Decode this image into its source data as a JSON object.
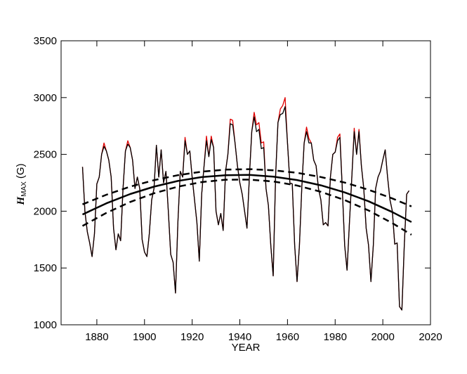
{
  "chart_data": {
    "type": "line",
    "x_label": "YEAR",
    "y_label": {
      "symbol": "H",
      "subscript": "MAX",
      "unit": "(G)"
    },
    "xlim": [
      1865,
      2020
    ],
    "ylim": [
      1000,
      3500
    ],
    "xticks": [
      1880,
      1900,
      1920,
      1940,
      1960,
      1980,
      2000,
      2020
    ],
    "yticks": [
      1000,
      1500,
      2000,
      2500,
      3000,
      3500
    ],
    "x": [
      1874,
      1875,
      1876,
      1877,
      1878,
      1879,
      1880,
      1881,
      1882,
      1883,
      1884,
      1885,
      1886,
      1887,
      1888,
      1889,
      1890,
      1891,
      1892,
      1893,
      1894,
      1895,
      1896,
      1897,
      1898,
      1899,
      1900,
      1901,
      1902,
      1903,
      1904,
      1905,
      1906,
      1907,
      1908,
      1909,
      1910,
      1911,
      1912,
      1913,
      1914,
      1915,
      1916,
      1917,
      1918,
      1919,
      1920,
      1921,
      1922,
      1923,
      1924,
      1925,
      1926,
      1927,
      1928,
      1929,
      1930,
      1931,
      1932,
      1933,
      1934,
      1935,
      1936,
      1937,
      1938,
      1939,
      1940,
      1941,
      1942,
      1943,
      1944,
      1945,
      1946,
      1947,
      1948,
      1949,
      1950,
      1951,
      1952,
      1953,
      1954,
      1955,
      1956,
      1957,
      1958,
      1959,
      1960,
      1961,
      1962,
      1963,
      1964,
      1965,
      1966,
      1967,
      1968,
      1969,
      1970,
      1971,
      1972,
      1973,
      1974,
      1975,
      1976,
      1977,
      1978,
      1979,
      1980,
      1981,
      1982,
      1983,
      1984,
      1985,
      1986,
      1987,
      1988,
      1989,
      1990,
      1991,
      1992,
      1993,
      1994,
      1995,
      1996,
      1997,
      1998,
      1999,
      2000,
      2001,
      2002,
      2003,
      2004,
      2005,
      2006,
      2007,
      2008,
      2009,
      2010,
      2011
    ],
    "series": [
      {
        "color": "#e00000",
        "width": 1.3,
        "values": [
          2390,
          2000,
          1820,
          1720,
          1600,
          1800,
          2240,
          2300,
          2500,
          2600,
          2530,
          2450,
          2300,
          1850,
          1660,
          1800,
          1740,
          2200,
          2530,
          2620,
          2560,
          2450,
          2200,
          2300,
          2200,
          1750,
          1640,
          1600,
          1800,
          2100,
          2200,
          2580,
          2300,
          2540,
          2250,
          2350,
          2000,
          1620,
          1550,
          1280,
          1900,
          2350,
          2300,
          2650,
          2500,
          2530,
          2300,
          2100,
          1900,
          1560,
          2150,
          2400,
          2660,
          2480,
          2660,
          2560,
          2000,
          1880,
          1980,
          1830,
          2350,
          2500,
          2810,
          2800,
          2600,
          2400,
          2250,
          2150,
          2000,
          1850,
          2300,
          2700,
          2870,
          2760,
          2780,
          2600,
          2610,
          2200,
          2050,
          1700,
          1430,
          2300,
          2780,
          2900,
          2930,
          3000,
          2600,
          2250,
          2240,
          1700,
          1380,
          1700,
          2200,
          2600,
          2740,
          2640,
          2600,
          2450,
          2400,
          2200,
          2100,
          1880,
          1900,
          1870,
          2300,
          2500,
          2520,
          2650,
          2680,
          2200,
          1700,
          1480,
          1900,
          2300,
          2730,
          2500,
          2720,
          2400,
          2200,
          1850,
          1700,
          1380,
          1700,
          2200,
          2300,
          2350,
          2450,
          2540,
          2300,
          2100,
          2000,
          1710,
          1720,
          1160,
          1130,
          1700,
          2150,
          2180
        ]
      },
      {
        "color": "#000000",
        "width": 1.3,
        "values": [
          2390,
          2000,
          1820,
          1720,
          1600,
          1800,
          2240,
          2300,
          2500,
          2570,
          2530,
          2450,
          2300,
          1850,
          1660,
          1800,
          1740,
          2200,
          2530,
          2590,
          2560,
          2450,
          2200,
          2300,
          2200,
          1750,
          1640,
          1600,
          1800,
          2100,
          2200,
          2580,
          2300,
          2540,
          2250,
          2350,
          2000,
          1620,
          1550,
          1280,
          1900,
          2350,
          2300,
          2620,
          2500,
          2530,
          2300,
          2100,
          1900,
          1560,
          2150,
          2400,
          2620,
          2480,
          2630,
          2560,
          2000,
          1880,
          1980,
          1830,
          2350,
          2500,
          2770,
          2760,
          2600,
          2400,
          2250,
          2150,
          2000,
          1850,
          2300,
          2700,
          2830,
          2700,
          2720,
          2550,
          2560,
          2200,
          2050,
          1700,
          1430,
          2300,
          2780,
          2850,
          2860,
          2920,
          2600,
          2250,
          2240,
          1700,
          1380,
          1700,
          2200,
          2600,
          2700,
          2600,
          2600,
          2450,
          2400,
          2200,
          2100,
          1880,
          1900,
          1870,
          2300,
          2500,
          2520,
          2620,
          2650,
          2200,
          1700,
          1480,
          1900,
          2300,
          2700,
          2500,
          2700,
          2400,
          2200,
          1850,
          1700,
          1380,
          1700,
          2200,
          2300,
          2350,
          2450,
          2540,
          2300,
          2100,
          2000,
          1710,
          1720,
          1160,
          1130,
          1700,
          2150,
          2180
        ]
      },
      {
        "color": "#000000",
        "width": 2.5,
        "x": [
          1874,
          1884,
          1894,
          1904,
          1914,
          1924,
          1934,
          1944,
          1954,
          1964,
          1974,
          1984,
          1994,
          2004,
          2012
        ],
        "values": [
          1971,
          2069,
          2151,
          2216,
          2266,
          2300,
          2317,
          2319,
          2304,
          2274,
          2228,
          2165,
          2087,
          1992,
          1905
        ]
      },
      {
        "color": "#000000",
        "width": 2.5,
        "dashed": true,
        "x": [
          1874,
          1884,
          1894,
          1904,
          1914,
          1924,
          1934,
          1944,
          1954,
          1964,
          1974,
          1984,
          1994,
          2004,
          2012
        ],
        "values": [
          2060,
          2145,
          2216,
          2273,
          2317,
          2348,
          2366,
          2370,
          2360,
          2338,
          2301,
          2252,
          2189,
          2112,
          2042
        ]
      },
      {
        "color": "#000000",
        "width": 2.5,
        "dashed": true,
        "x": [
          1874,
          1884,
          1894,
          1904,
          1914,
          1924,
          1934,
          1944,
          1954,
          1964,
          1974,
          1984,
          1994,
          2004,
          2012
        ],
        "values": [
          1870,
          1985,
          2081,
          2158,
          2216,
          2256,
          2277,
          2278,
          2262,
          2226,
          2171,
          2098,
          2006,
          1895,
          1793
        ]
      }
    ]
  }
}
